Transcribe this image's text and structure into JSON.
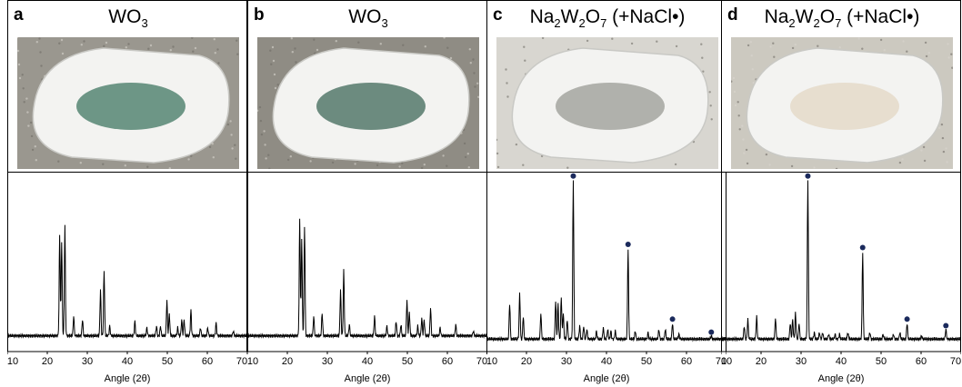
{
  "panels": [
    {
      "letter": "a",
      "title_main": "WO",
      "title_sub": "3",
      "title_tail": "",
      "photo": {
        "background": "#9a978f",
        "powder": "#5e8c7a"
      },
      "xlabel": "Angle (2θ)"
    },
    {
      "letter": "b",
      "title_main": "WO",
      "title_sub": "3",
      "title_tail": "",
      "photo": {
        "background": "#8f8c84",
        "powder": "#5d7f72"
      },
      "xlabel": "Angle (2θ)"
    },
    {
      "letter": "c",
      "title_main": "Na",
      "title_sub": "2",
      "title_main2": "W",
      "title_sub2": "2",
      "title_main3": "O",
      "title_sub3": "7",
      "title_tail": " (+NaCl•)",
      "photo": {
        "background": "#d8d6d0",
        "powder": "#a8aaa4"
      },
      "xlabel": "Angle (2θ)"
    },
    {
      "letter": "d",
      "title_main": "Na",
      "title_sub": "2",
      "title_main2": "W",
      "title_sub2": "2",
      "title_main3": "O",
      "title_sub3": "7",
      "title_tail": " (+NaCl•)",
      "photo": {
        "background": "#ccc9c0",
        "powder": "#e6dccb"
      },
      "xlabel": "Angle (2θ)"
    }
  ],
  "chart_data": [
    {
      "type": "line",
      "xlabel": "Angle (2θ)",
      "xlim": [
        10,
        70
      ],
      "ticks": [
        "10",
        "20",
        "30",
        "40",
        "50",
        "60",
        "70"
      ],
      "baseline": 0.03,
      "peaks": [
        [
          23.1,
          0.62
        ],
        [
          23.6,
          0.58
        ],
        [
          24.4,
          0.68
        ],
        [
          26.6,
          0.12
        ],
        [
          28.8,
          0.1
        ],
        [
          33.3,
          0.28
        ],
        [
          34.2,
          0.4
        ],
        [
          35.6,
          0.06
        ],
        [
          41.9,
          0.09
        ],
        [
          44.9,
          0.05
        ],
        [
          47.3,
          0.06
        ],
        [
          48.3,
          0.06
        ],
        [
          49.9,
          0.22
        ],
        [
          50.5,
          0.14
        ],
        [
          52.6,
          0.05
        ],
        [
          53.6,
          0.1
        ],
        [
          54.2,
          0.1
        ],
        [
          55.9,
          0.16
        ],
        [
          58.3,
          0.05
        ],
        [
          60.1,
          0.05
        ],
        [
          62.2,
          0.08
        ],
        [
          66.5,
          0.03
        ]
      ],
      "markers": []
    },
    {
      "type": "line",
      "xlabel": "Angle (2θ)",
      "xlim": [
        10,
        70
      ],
      "ticks": [
        "10",
        "20",
        "30",
        "40",
        "50",
        "60",
        "70"
      ],
      "baseline": 0.03,
      "peaks": [
        [
          23.1,
          0.72
        ],
        [
          23.6,
          0.6
        ],
        [
          24.3,
          0.68
        ],
        [
          26.6,
          0.12
        ],
        [
          28.7,
          0.14
        ],
        [
          33.3,
          0.28
        ],
        [
          34.1,
          0.4
        ],
        [
          35.5,
          0.07
        ],
        [
          41.8,
          0.12
        ],
        [
          44.9,
          0.06
        ],
        [
          47.2,
          0.09
        ],
        [
          48.4,
          0.07
        ],
        [
          49.9,
          0.22
        ],
        [
          50.5,
          0.15
        ],
        [
          52.6,
          0.06
        ],
        [
          53.6,
          0.11
        ],
        [
          54.2,
          0.1
        ],
        [
          55.8,
          0.17
        ],
        [
          58.2,
          0.05
        ],
        [
          62.1,
          0.07
        ],
        [
          66.5,
          0.03
        ]
      ],
      "markers": []
    },
    {
      "type": "line",
      "xlabel": "Angle (2θ)",
      "xlim": [
        10,
        70
      ],
      "ticks": [
        "10",
        "20",
        "30",
        "40",
        "50",
        "60",
        "70"
      ],
      "baseline": 0.01,
      "peaks": [
        [
          15.8,
          0.22
        ],
        [
          18.3,
          0.28
        ],
        [
          19.2,
          0.14
        ],
        [
          23.6,
          0.16
        ],
        [
          27.3,
          0.24
        ],
        [
          27.9,
          0.22
        ],
        [
          28.7,
          0.26
        ],
        [
          29.2,
          0.16
        ],
        [
          30.2,
          0.12
        ],
        [
          31.7,
          0.98
        ],
        [
          33.3,
          0.08
        ],
        [
          34.3,
          0.08
        ],
        [
          35.1,
          0.06
        ],
        [
          37.5,
          0.05
        ],
        [
          39.2,
          0.07
        ],
        [
          40.3,
          0.06
        ],
        [
          41.1,
          0.05
        ],
        [
          42.2,
          0.05
        ],
        [
          45.4,
          0.56
        ],
        [
          47.2,
          0.05
        ],
        [
          50.4,
          0.04
        ],
        [
          53.1,
          0.06
        ],
        [
          54.7,
          0.06
        ],
        [
          56.5,
          0.1
        ],
        [
          58.1,
          0.03
        ],
        [
          66.2,
          0.02
        ]
      ],
      "markers": [
        31.7,
        45.4,
        56.5,
        66.2
      ]
    },
    {
      "type": "line",
      "xlabel": "Angle (2θ)",
      "xlim": [
        10,
        70
      ],
      "ticks": [
        "10",
        "20",
        "30",
        "40",
        "50",
        "60",
        "70"
      ],
      "baseline": 0.01,
      "peaks": [
        [
          15.8,
          0.08
        ],
        [
          16.7,
          0.12
        ],
        [
          18.9,
          0.14
        ],
        [
          23.6,
          0.13
        ],
        [
          27.3,
          0.1
        ],
        [
          27.9,
          0.12
        ],
        [
          28.6,
          0.16
        ],
        [
          29.5,
          0.1
        ],
        [
          31.7,
          0.98
        ],
        [
          33.3,
          0.04
        ],
        [
          34.6,
          0.04
        ],
        [
          35.4,
          0.04
        ],
        [
          36.9,
          0.03
        ],
        [
          38.5,
          0.03
        ],
        [
          39.6,
          0.03
        ],
        [
          41.7,
          0.04
        ],
        [
          45.4,
          0.54
        ],
        [
          47.2,
          0.04
        ],
        [
          50.5,
          0.03
        ],
        [
          53.1,
          0.03
        ],
        [
          54.7,
          0.04
        ],
        [
          56.5,
          0.1
        ],
        [
          60.1,
          0.02
        ],
        [
          66.2,
          0.06
        ]
      ],
      "markers": [
        31.7,
        45.4,
        56.5,
        66.2
      ]
    }
  ]
}
